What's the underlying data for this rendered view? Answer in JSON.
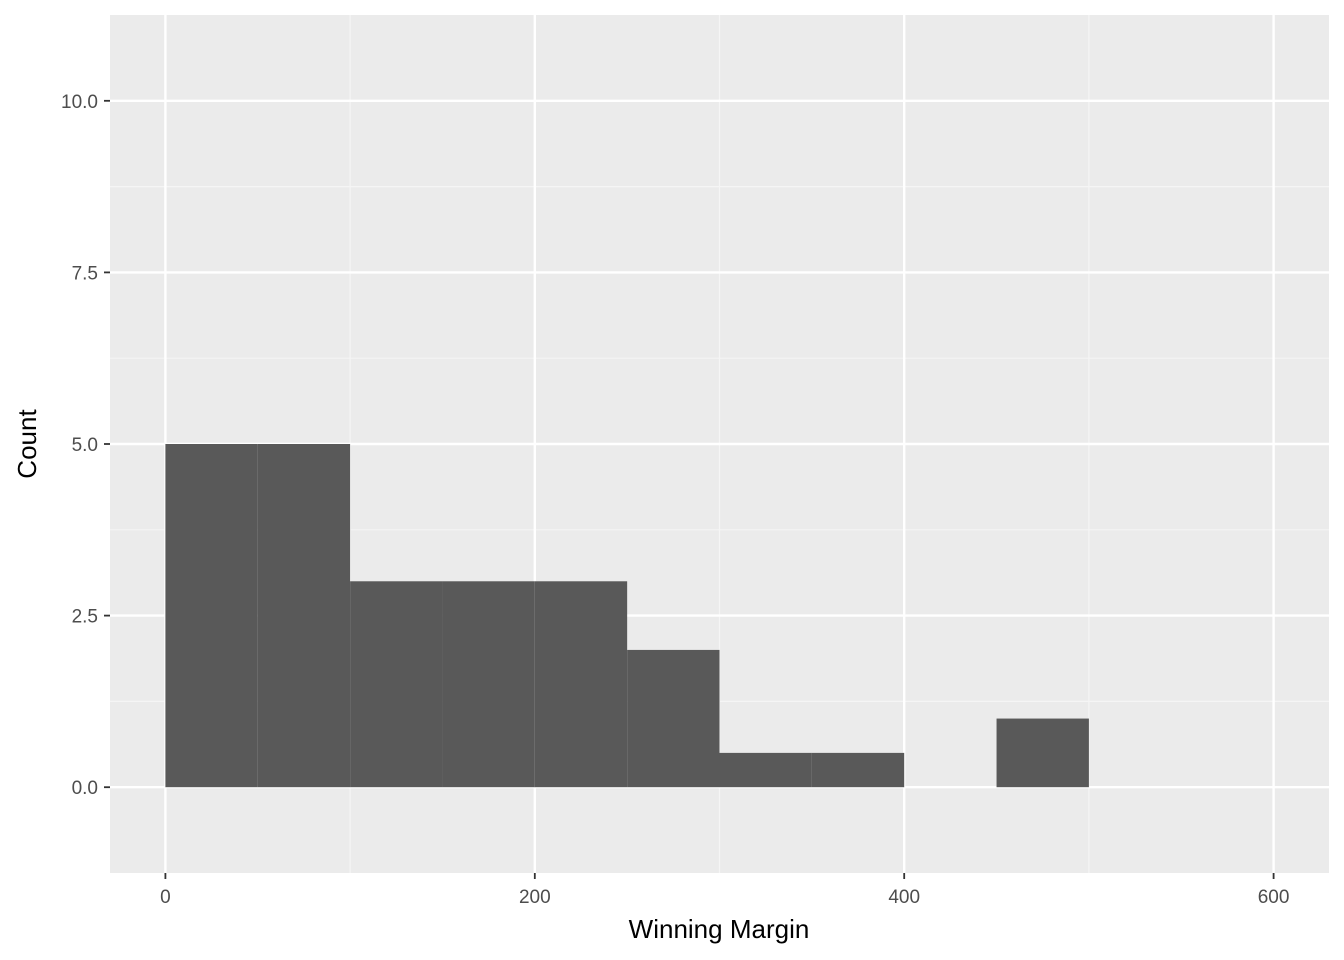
{
  "chart_data": {
    "type": "bar",
    "title": "",
    "xlabel": "Winning Margin",
    "ylabel": "Count",
    "xlim": [
      -30,
      630
    ],
    "ylim": [
      -1.25,
      11.25
    ],
    "x_ticks": [
      0,
      200,
      400,
      600
    ],
    "x_tick_labels": [
      "0",
      "200",
      "400",
      "600"
    ],
    "y_ticks": [
      0,
      2.5,
      5,
      7.5,
      10
    ],
    "y_tick_labels": [
      "0.0",
      "2.5",
      "5.0",
      "7.5",
      "10.0"
    ],
    "grid": true,
    "bin_edges": [
      0,
      50,
      100,
      150,
      200,
      250,
      300,
      350,
      400,
      450,
      500
    ],
    "values": [
      5,
      5,
      3,
      3,
      3,
      2,
      0.5,
      0.5,
      0,
      1
    ],
    "colors": {
      "bar": "#595959",
      "panel": "#ebebeb",
      "grid_major": "#ffffff",
      "grid_minor": "#f5f5f5",
      "tick_text": "#4d4d4d",
      "axis_title": "#000000"
    }
  }
}
